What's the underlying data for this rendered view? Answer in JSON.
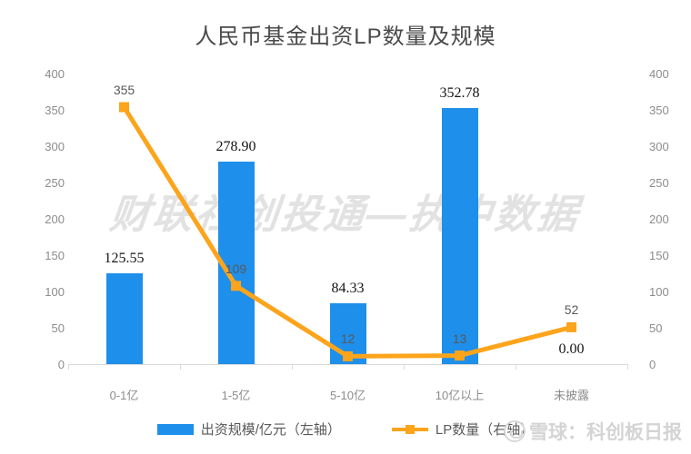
{
  "title": "人民币基金出资LP数量及规模",
  "colors": {
    "bar": "#1e8fea",
    "line": "#fca41b",
    "axis_text": "#8c8c8c",
    "bar_label": "#141414",
    "line_label": "#595959",
    "axis_line": "#d9d9d9",
    "watermark": "#e2e2e2"
  },
  "chart_data": {
    "type": "bar",
    "subtype": "combo-bar-line",
    "title": "人民币基金出资LP数量及规模",
    "categories": [
      "0-1亿",
      "1-5亿",
      "5-10亿",
      "10亿以上",
      "未披露"
    ],
    "series": [
      {
        "name": "出资规模/亿元（左轴）",
        "type": "bar",
        "axis": "left",
        "color": "#1e8fea",
        "values": [
          125.55,
          278.9,
          84.33,
          352.78,
          0.0
        ],
        "labels": [
          "125.55",
          "278.90",
          "84.33",
          "352.78",
          "0.00"
        ]
      },
      {
        "name": "LP数量（右轴）",
        "type": "line",
        "axis": "right",
        "color": "#fca41b",
        "values": [
          355,
          109,
          12,
          13,
          52
        ],
        "labels": [
          "355",
          "109",
          "12",
          "13",
          "52"
        ]
      }
    ],
    "left_axis": {
      "min": 0,
      "max": 400,
      "ticks": [
        0,
        50,
        100,
        150,
        200,
        250,
        300,
        350,
        400
      ]
    },
    "right_axis": {
      "min": 0,
      "max": 400,
      "ticks": [
        0,
        50,
        100,
        150,
        200,
        250,
        300,
        350,
        400
      ]
    },
    "grid": false,
    "legend_position": "bottom"
  },
  "legend": {
    "bar_label": "出资规模/亿元（左轴）",
    "line_label": "LP数量（右轴）"
  },
  "watermarks": {
    "center": "财联社创投通—执中数据",
    "bottom_right": "雪球：科创板日报"
  }
}
